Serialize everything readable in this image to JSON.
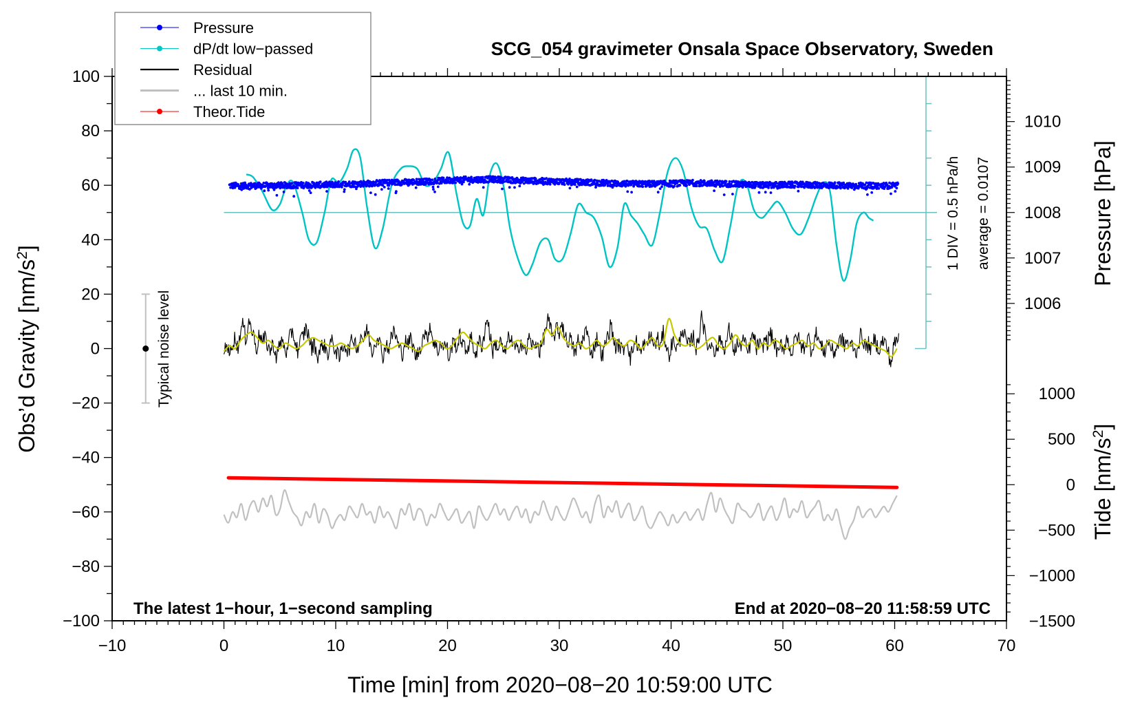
{
  "chart_data": {
    "type": "line",
    "title": "SCG_054 gravimeter Onsala Space Observatory, Sweden",
    "xlabel": "Time [min] from 2020−08−20 10:59:00 UTC",
    "ylabel": "Obs’d Gravity [nm/s²]",
    "ylabel_main": "Obs’d Gravity [nm/s",
    "ylabel_sup": "2",
    "ylabel_end": "]",
    "y2label": "Pressure [hPa]",
    "y3label_main": "Tide [nm/s",
    "y3label_sup": "2",
    "y3label_end": "]",
    "xlim": [
      -10,
      70
    ],
    "ylim": [
      -100,
      100
    ],
    "x_ticks": [
      -10,
      0,
      10,
      20,
      30,
      40,
      50,
      60,
      70
    ],
    "x_tick_labels": [
      "−10",
      "0",
      "10",
      "20",
      "30",
      "40",
      "50",
      "60",
      "70"
    ],
    "y_ticks": [
      100,
      80,
      60,
      40,
      20,
      0,
      -20,
      -40,
      -60,
      -80,
      -100
    ],
    "y_tick_labels": [
      "100",
      "80",
      "60",
      "40",
      "20",
      "0",
      "−20",
      "−40",
      "−60",
      "−80",
      "−100"
    ],
    "pressure_axis": {
      "ticks": [
        1010,
        1009,
        1008,
        1007,
        1006
      ],
      "tick_labels": [
        "1010",
        "1009",
        "1008",
        "1007",
        "1006"
      ],
      "ref_hpa": 1008,
      "ref_gravity": 50,
      "gravity_units_per_hpa": 16.7
    },
    "tide_axis": {
      "ticks": [
        1000,
        500,
        0,
        -500,
        -1000,
        -1500
      ],
      "tick_labels": [
        "1000",
        "500",
        "0",
        "−500",
        "−1000",
        "−1500"
      ],
      "ref_tide": 0,
      "ref_gravity": -50,
      "gravity_units_per_nms2": 0.0334
    },
    "dpdt_scale": {
      "label_div": "1 DIV = 0.5 hPa/h",
      "label_avg": "average = 0.0107",
      "x": 62.8,
      "top": 100,
      "bottom": 0,
      "zero": 50,
      "div": 10
    },
    "noise_level": {
      "label": "Typical noise level",
      "x": -7,
      "center": 0,
      "low": -20,
      "high": 20
    },
    "annotations": {
      "left": "The latest 1−hour, 1−second sampling",
      "right": "End at 2020−08−20 11:58:59 UTC"
    },
    "legend": {
      "position": "top-left",
      "entries": [
        {
          "label": "Pressure",
          "color": "#0000ff",
          "marker": true
        },
        {
          "label": "dP/dt low−passed",
          "color": "#00c8c8",
          "marker": true
        },
        {
          "label": "Residual",
          "color": "#000000",
          "marker": false
        },
        {
          "label": "... last 10 min.",
          "color": "#c0c0c0",
          "marker": false,
          "thick": true
        },
        {
          "label": "Theor.Tide",
          "color": "#ff0000",
          "marker": true
        }
      ]
    },
    "colors": {
      "pressure": "#0000ff",
      "dpdt": "#00c4c4",
      "dpdt_axis": "#66c2c2",
      "residual": "#000000",
      "residual_smooth": "#c8c800",
      "last10": "#c0c0c0",
      "tide": "#ff0000",
      "noise_bar": "#c0c0c0"
    },
    "series": [
      {
        "name": "Pressure",
        "units": "hPa",
        "x": [
          0.5,
          3,
          6,
          9,
          12,
          15,
          18,
          21,
          24,
          27,
          30,
          33,
          36,
          39,
          42,
          45,
          48,
          51,
          54,
          57,
          60.3
        ],
        "values": [
          1008.59,
          1008.59,
          1008.6,
          1008.61,
          1008.63,
          1008.66,
          1008.68,
          1008.72,
          1008.73,
          1008.7,
          1008.68,
          1008.66,
          1008.63,
          1008.63,
          1008.65,
          1008.63,
          1008.6,
          1008.61,
          1008.6,
          1008.59,
          1008.59
        ]
      },
      {
        "name": "dP/dt low-passed",
        "units": "gravity-plot units (zero line at 50)",
        "x": [
          2.0,
          2.6,
          3.4,
          4.3,
          5.0,
          5.6,
          6.2,
          7.0,
          7.6,
          8.3,
          9.0,
          9.6,
          10.3,
          11.0,
          11.6,
          12.2,
          12.8,
          13.5,
          14.2,
          15.0,
          15.8,
          16.5,
          17.3,
          18.0,
          18.7,
          19.4,
          20.1,
          20.8,
          21.4,
          22.0,
          22.6,
          23.2,
          23.8,
          24.4,
          25.0,
          25.6,
          26.3,
          27.0,
          27.6,
          28.3,
          29.0,
          29.6,
          30.3,
          31.0,
          31.7,
          32.4,
          33.1,
          33.8,
          34.5,
          35.2,
          35.8,
          36.4,
          37.0,
          37.6,
          38.3,
          39.0,
          39.7,
          40.4,
          41.1,
          41.8,
          42.5,
          43.2,
          43.9,
          44.6,
          45.3,
          46.0,
          46.7,
          47.4,
          48.1,
          48.8,
          49.5,
          50.2,
          50.9,
          51.6,
          52.3,
          53.0,
          53.6,
          54.2,
          54.8,
          55.4,
          56.0,
          56.6,
          57.2,
          57.7,
          58.1
        ],
        "values": [
          64,
          63,
          58,
          51,
          53,
          60,
          61,
          50,
          40,
          39,
          50,
          62,
          61,
          66,
          73,
          70,
          52,
          37,
          44,
          60,
          66,
          67,
          66,
          60,
          61,
          66,
          72,
          57,
          46,
          45,
          55,
          49,
          64,
          68,
          60,
          44,
          33,
          27,
          31,
          39,
          40,
          33,
          33,
          42,
          53,
          50,
          48,
          41,
          30,
          37,
          53,
          49,
          46,
          42,
          38,
          50,
          65,
          70,
          65,
          52,
          45,
          44,
          36,
          32,
          45,
          60,
          61,
          51,
          48,
          51,
          54,
          50,
          44,
          42,
          48,
          56,
          61,
          58,
          38,
          25,
          32,
          46,
          50,
          48,
          47
        ]
      },
      {
        "name": "Residual",
        "units": "nm/s²",
        "x_start": 0,
        "x_end": 60.4,
        "values": [
          -2,
          3,
          -3,
          2,
          4,
          0,
          6,
          9,
          3,
          11,
          7,
          4,
          0,
          6,
          2,
          4,
          1,
          -1,
          2,
          -3,
          0,
          3,
          1,
          -2,
          4,
          7,
          2,
          -1,
          3,
          5,
          8,
          4,
          0,
          2,
          -3,
          -1,
          2,
          0,
          -2,
          3,
          1,
          -1,
          -4,
          0,
          2,
          -1,
          1,
          4,
          2,
          0,
          6,
          2,
          8,
          3,
          -1,
          2,
          5,
          1,
          -3,
          2,
          0,
          4,
          7,
          3,
          0,
          -2,
          3,
          1,
          4,
          0,
          -3,
          -1,
          2,
          6,
          3,
          9,
          4,
          1,
          -1,
          3,
          0,
          2,
          -4,
          1,
          3,
          0,
          5,
          2,
          -1,
          1,
          4,
          0,
          -2,
          3,
          1,
          6,
          12,
          4,
          -1,
          2,
          0,
          3,
          -3,
          1,
          5,
          2,
          0,
          -1,
          3,
          1,
          -2,
          4,
          2,
          0,
          3,
          -1,
          2,
          6,
          11,
          7,
          3,
          8,
          5,
          10,
          6,
          2,
          4,
          1,
          -2,
          3,
          0,
          5,
          7,
          2,
          -2,
          1,
          4,
          0,
          -3,
          2,
          5,
          9,
          3,
          0,
          2,
          -1,
          1,
          4,
          -4,
          0,
          3,
          1,
          -2,
          2,
          0,
          5,
          3,
          1,
          4,
          0,
          6,
          2,
          -3,
          1,
          3,
          0,
          2,
          8,
          4,
          1,
          2,
          5,
          0,
          3,
          14,
          6,
          2,
          0,
          3,
          -2,
          1,
          4,
          0,
          2,
          7,
          3,
          -1,
          2,
          0,
          4,
          1,
          -2,
          3,
          5,
          0,
          2,
          -1,
          4,
          2,
          6,
          3,
          1,
          -3,
          2,
          0,
          4,
          1,
          -2,
          3,
          5,
          1,
          0,
          2,
          4,
          -1,
          3,
          6,
          2,
          0,
          -1,
          3,
          1,
          -2,
          0,
          2,
          4,
          1,
          3,
          0,
          2,
          -2,
          1,
          5,
          3,
          0,
          2,
          -1,
          4,
          1,
          0,
          3,
          2,
          -1,
          -6,
          1,
          3,
          4
        ]
      },
      {
        "name": "Residual smoothed",
        "units": "nm/s²",
        "x_start": 0,
        "x_end": 60.2,
        "values": [
          -1,
          1,
          0,
          3,
          5,
          6,
          4,
          2,
          3,
          1,
          0,
          2,
          1,
          0,
          1,
          3,
          4,
          3,
          2,
          1,
          1,
          2,
          1,
          0,
          1,
          3,
          5,
          3,
          2,
          1,
          0,
          1,
          2,
          1,
          0,
          -1,
          1,
          2,
          3,
          2,
          0,
          1,
          4,
          6,
          4,
          2,
          1,
          0,
          2,
          3,
          1,
          0,
          2,
          3,
          1,
          0,
          1,
          2,
          7,
          5,
          8,
          4,
          2,
          1,
          2,
          0,
          1,
          3,
          1,
          2,
          4,
          2,
          1,
          3,
          2,
          0,
          2,
          4,
          1,
          2,
          11,
          5,
          2,
          1,
          2,
          0,
          1,
          3,
          4,
          1,
          0,
          2,
          5,
          2,
          1,
          3,
          0,
          2,
          1,
          3,
          2,
          0,
          1,
          2,
          3,
          1,
          2,
          0,
          1,
          3,
          2,
          1,
          0,
          2,
          1,
          3,
          2,
          1,
          0,
          -1,
          -3,
          0
        ]
      },
      {
        "name": "... last 10 min.",
        "units": "gravity-plot units (offset trace)",
        "x_start": 0,
        "x_end": 60.2,
        "values": [
          -61,
          -64,
          -60,
          -62,
          -57,
          -63,
          -58,
          -56,
          -60,
          -55,
          -58,
          -54,
          -61,
          -59,
          -52,
          -56,
          -60,
          -62,
          -65,
          -60,
          -62,
          -57,
          -64,
          -59,
          -61,
          -66,
          -63,
          -61,
          -63,
          -58,
          -60,
          -62,
          -57,
          -61,
          -60,
          -64,
          -58,
          -62,
          -60,
          -63,
          -66,
          -59,
          -61,
          -57,
          -63,
          -59,
          -60,
          -65,
          -61,
          -62,
          -57,
          -60,
          -63,
          -61,
          -59,
          -64,
          -62,
          -60,
          -66,
          -58,
          -61,
          -63,
          -60,
          -57,
          -61,
          -59,
          -63,
          -60,
          -58,
          -62,
          -59,
          -64,
          -60,
          -61,
          -56,
          -60,
          -63,
          -58,
          -61,
          -63,
          -59,
          -55,
          -58,
          -62,
          -60,
          -64,
          -57,
          -54,
          -62,
          -58,
          -60,
          -56,
          -62,
          -59,
          -57,
          -63,
          -61,
          -58,
          -64,
          -66,
          -63,
          -60,
          -62,
          -65,
          -61,
          -64,
          -62,
          -60,
          -63,
          -61,
          -59,
          -63,
          -57,
          -53,
          -60,
          -55,
          -59,
          -62,
          -64,
          -57,
          -59,
          -60,
          -62,
          -60,
          -57,
          -63,
          -60,
          -58,
          -63,
          -60,
          -55,
          -62,
          -59,
          -60,
          -56,
          -62,
          -60,
          -58,
          -56,
          -63,
          -61,
          -63,
          -59,
          -65,
          -70,
          -66,
          -63,
          -58,
          -62,
          -60,
          -59,
          -62,
          -60,
          -58,
          -60,
          -57,
          -54
        ]
      },
      {
        "name": "Theor.Tide",
        "units": "nm/s²",
        "x": [
          0.4,
          60.2
        ],
        "values": [
          75,
          -30
        ]
      }
    ]
  }
}
